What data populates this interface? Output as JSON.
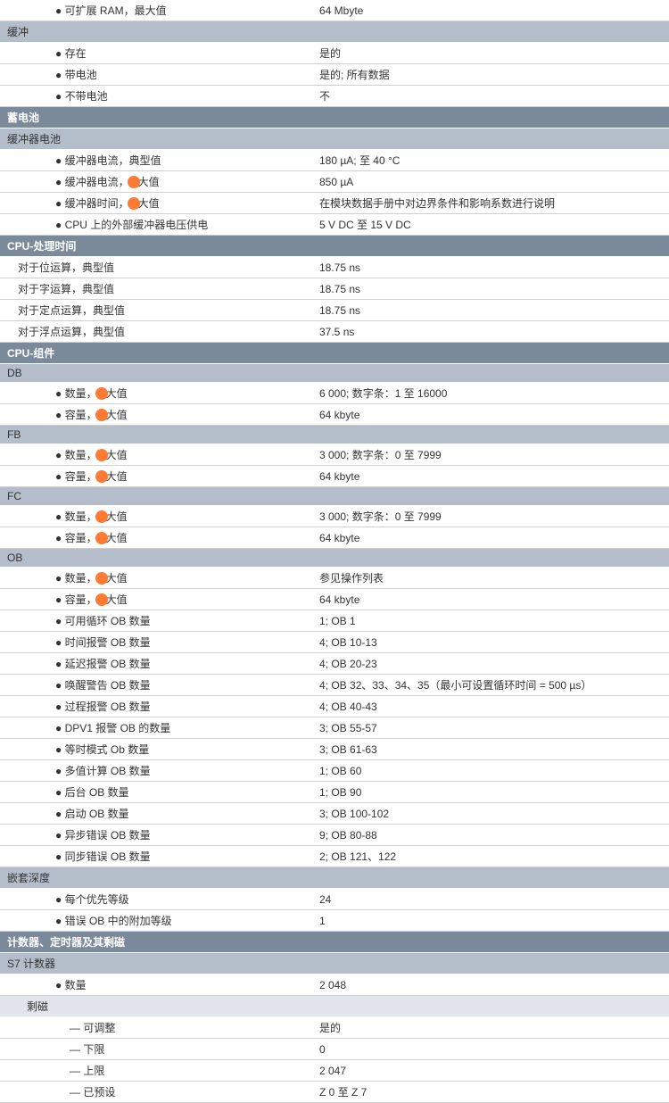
{
  "rows": [
    {
      "type": "data",
      "indent": 3,
      "label_pre": "● 可扩展 RAM，最大值",
      "dot": false,
      "value": "64 Mbyte"
    },
    {
      "type": "sub",
      "label": "缓冲"
    },
    {
      "type": "data",
      "indent": 3,
      "label_pre": "● 存在",
      "dot": false,
      "value": "是的"
    },
    {
      "type": "data",
      "indent": 3,
      "label_pre": "● 带电池",
      "dot": false,
      "value": "是的; 所有数据"
    },
    {
      "type": "data",
      "indent": 3,
      "label_pre": "● 不带电池",
      "dot": false,
      "value": "不"
    },
    {
      "type": "main",
      "label": "蓄电池"
    },
    {
      "type": "sub",
      "label": "缓冲器电池"
    },
    {
      "type": "data",
      "indent": 3,
      "label_pre": "● 缓冲器电流，典型值",
      "dot": false,
      "value": "180 µA; 至 40 °C"
    },
    {
      "type": "data",
      "indent": 3,
      "label_pre": "● 缓冲器电流，",
      "label_post": "大值",
      "dot": true,
      "value": "850 µA"
    },
    {
      "type": "data",
      "indent": 3,
      "label_pre": "● 缓冲器时间，",
      "label_post": "大值",
      "dot": true,
      "value": "在模块数据手册中对边界条件和影响系数进行说明"
    },
    {
      "type": "data",
      "indent": 3,
      "label_pre": "● CPU 上的外部缓冲器电压供电",
      "dot": false,
      "value": "5 V DC 至 15 V DC"
    },
    {
      "type": "main",
      "label": "CPU-处理时间"
    },
    {
      "type": "data",
      "indent": 1,
      "label_pre": "对于位运算，典型值",
      "dot": false,
      "value": "18.75 ns"
    },
    {
      "type": "data",
      "indent": 1,
      "label_pre": "对于字运算，典型值",
      "dot": false,
      "value": "18.75 ns"
    },
    {
      "type": "data",
      "indent": 1,
      "label_pre": "对于定点运算，典型值",
      "dot": false,
      "value": "18.75 ns"
    },
    {
      "type": "data",
      "indent": 1,
      "label_pre": "对于浮点运算，典型值",
      "dot": false,
      "value": "37.5 ns"
    },
    {
      "type": "main",
      "label": "CPU-组件"
    },
    {
      "type": "sub",
      "label": "DB"
    },
    {
      "type": "data",
      "indent": 3,
      "label_pre": "● 数量，",
      "label_post": "大值",
      "dot": true,
      "value": "6 000; 数字条：1 至 16000"
    },
    {
      "type": "data",
      "indent": 3,
      "label_pre": "● 容量，",
      "label_post": "大值",
      "dot": true,
      "value": "64 kbyte"
    },
    {
      "type": "sub",
      "label": "FB"
    },
    {
      "type": "data",
      "indent": 3,
      "label_pre": "● 数量，",
      "label_post": "大值",
      "dot": true,
      "value": "3 000; 数字条：0 至 7999"
    },
    {
      "type": "data",
      "indent": 3,
      "label_pre": "● 容量，",
      "label_post": "大值",
      "dot": true,
      "value": "64 kbyte"
    },
    {
      "type": "sub",
      "label": "FC"
    },
    {
      "type": "data",
      "indent": 3,
      "label_pre": "● 数量，",
      "label_post": "大值",
      "dot": true,
      "value": "3 000; 数字条：0 至 7999"
    },
    {
      "type": "data",
      "indent": 3,
      "label_pre": "● 容量，",
      "label_post": "大值",
      "dot": true,
      "value": "64 kbyte"
    },
    {
      "type": "sub",
      "label": "OB"
    },
    {
      "type": "data",
      "indent": 3,
      "label_pre": "● 数量，",
      "label_post": "大值",
      "dot": true,
      "value": "参见操作列表"
    },
    {
      "type": "data",
      "indent": 3,
      "label_pre": "● 容量，",
      "label_post": "大值",
      "dot": true,
      "value": "64 kbyte"
    },
    {
      "type": "data",
      "indent": 3,
      "label_pre": "● 可用循环 OB 数量",
      "dot": false,
      "value": "1; OB 1"
    },
    {
      "type": "data",
      "indent": 3,
      "label_pre": "● 时间报警 OB 数量",
      "dot": false,
      "value": "4; OB 10-13"
    },
    {
      "type": "data",
      "indent": 3,
      "label_pre": "● 延迟报警 OB 数量",
      "dot": false,
      "value": "4; OB 20-23"
    },
    {
      "type": "data",
      "indent": 3,
      "label_pre": "● 唤醒警告 OB 数量",
      "dot": false,
      "value": "4; OB 32、33、34、35（最小可设置循环时间 = 500 µs）"
    },
    {
      "type": "data",
      "indent": 3,
      "label_pre": "● 过程报警 OB 数量",
      "dot": false,
      "value": "4; OB 40-43"
    },
    {
      "type": "data",
      "indent": 3,
      "label_pre": "● DPV1 报警 OB 的数量",
      "dot": false,
      "value": "3; OB 55-57"
    },
    {
      "type": "data",
      "indent": 3,
      "label_pre": "● 等时模式 Ob 数量",
      "dot": false,
      "value": "3; OB 61-63"
    },
    {
      "type": "data",
      "indent": 3,
      "label_pre": "● 多值计算 OB 数量",
      "dot": false,
      "value": "1; OB 60"
    },
    {
      "type": "data",
      "indent": 3,
      "label_pre": "● 后台 OB 数量",
      "dot": false,
      "value": "1; OB 90"
    },
    {
      "type": "data",
      "indent": 3,
      "label_pre": "● 启动 OB 数量",
      "dot": false,
      "value": "3; OB 100-102"
    },
    {
      "type": "data",
      "indent": 3,
      "label_pre": "● 异步错误 OB 数量",
      "dot": false,
      "value": "9; OB 80-88"
    },
    {
      "type": "data",
      "indent": 3,
      "label_pre": "● 同步错误 OB 数量",
      "dot": false,
      "value": "2; OB 121、122"
    },
    {
      "type": "sub",
      "label": "嵌套深度"
    },
    {
      "type": "data",
      "indent": 3,
      "label_pre": "● 每个优先等级",
      "dot": false,
      "value": "24"
    },
    {
      "type": "data",
      "indent": 3,
      "label_pre": "● 错误 OB 中的附加等级",
      "dot": false,
      "value": "1"
    },
    {
      "type": "main",
      "label": "计数器、定时器及其剩磁"
    },
    {
      "type": "sub",
      "label": "S7 计数器"
    },
    {
      "type": "data",
      "indent": 3,
      "label_pre": "● 数量",
      "dot": false,
      "value": "2 048"
    },
    {
      "type": "sub3",
      "label": "剩磁"
    },
    {
      "type": "data",
      "indent": 4,
      "label_pre": "— 可调整",
      "dot": false,
      "value": "是的"
    },
    {
      "type": "data",
      "indent": 4,
      "label_pre": "— 下限",
      "dot": false,
      "value": "0"
    },
    {
      "type": "data",
      "indent": 4,
      "label_pre": "— 上限",
      "dot": false,
      "value": "2 047"
    },
    {
      "type": "data",
      "indent": 4,
      "label_pre": "— 已预设",
      "dot": false,
      "value": "Z 0 至 Z 7"
    }
  ]
}
